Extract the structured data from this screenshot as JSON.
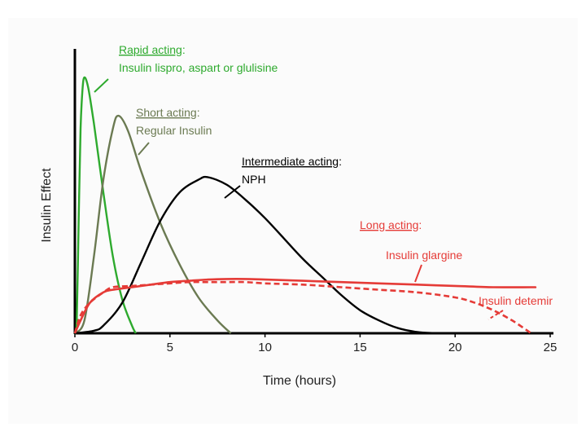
{
  "chart_data": {
    "type": "line",
    "xlabel": "Time (hours)",
    "ylabel": "Insulin Effect",
    "xlim": [
      0,
      25
    ],
    "ylim": [
      0,
      1
    ],
    "xticks": [
      0,
      5,
      10,
      15,
      20,
      25
    ],
    "grid": false,
    "series": [
      {
        "key": "rapid",
        "color": "#2eaa2e",
        "style": "solid",
        "points": [
          [
            0,
            0
          ],
          [
            0.1,
            0.05
          ],
          [
            0.2,
            0.45
          ],
          [
            0.3,
            0.8
          ],
          [
            0.4,
            0.95
          ],
          [
            0.5,
            1.0
          ],
          [
            0.7,
            0.96
          ],
          [
            1.0,
            0.82
          ],
          [
            1.5,
            0.55
          ],
          [
            2.0,
            0.3
          ],
          [
            2.5,
            0.13
          ],
          [
            3.0,
            0.03
          ],
          [
            3.2,
            0
          ]
        ]
      },
      {
        "key": "short",
        "color": "#6b7a52",
        "style": "solid",
        "points": [
          [
            0,
            0
          ],
          [
            0.5,
            0.05
          ],
          [
            1.0,
            0.3
          ],
          [
            1.5,
            0.6
          ],
          [
            2.0,
            0.8
          ],
          [
            2.3,
            0.85
          ],
          [
            2.8,
            0.79
          ],
          [
            3.5,
            0.63
          ],
          [
            4.5,
            0.43
          ],
          [
            5.5,
            0.27
          ],
          [
            6.5,
            0.14
          ],
          [
            7.5,
            0.05
          ],
          [
            8.2,
            0
          ]
        ]
      },
      {
        "key": "intermediate",
        "color": "#000000",
        "style": "solid",
        "points": [
          [
            0,
            0
          ],
          [
            1,
            0.01
          ],
          [
            1.5,
            0.03
          ],
          [
            2.5,
            0.12
          ],
          [
            3.5,
            0.28
          ],
          [
            4.5,
            0.44
          ],
          [
            5.5,
            0.55
          ],
          [
            6.5,
            0.6
          ],
          [
            7,
            0.61
          ],
          [
            8,
            0.58
          ],
          [
            9,
            0.52
          ],
          [
            10,
            0.45
          ],
          [
            11,
            0.37
          ],
          [
            12,
            0.29
          ],
          [
            13,
            0.22
          ],
          [
            14,
            0.15
          ],
          [
            15,
            0.09
          ],
          [
            16,
            0.05
          ],
          [
            17,
            0.02
          ],
          [
            18,
            0.005
          ],
          [
            19,
            0
          ]
        ]
      },
      {
        "key": "glargine",
        "color": "#e53b37",
        "style": "solid",
        "points": [
          [
            0,
            0
          ],
          [
            0.3,
            0.05
          ],
          [
            0.8,
            0.12
          ],
          [
            1.5,
            0.16
          ],
          [
            2,
            0.17
          ],
          [
            3,
            0.18
          ],
          [
            4,
            0.19
          ],
          [
            5,
            0.2
          ],
          [
            6,
            0.205
          ],
          [
            7,
            0.21
          ],
          [
            8,
            0.212
          ],
          [
            9,
            0.212
          ],
          [
            10,
            0.21
          ],
          [
            12,
            0.205
          ],
          [
            14,
            0.2
          ],
          [
            16,
            0.195
          ],
          [
            18,
            0.19
          ],
          [
            20,
            0.185
          ],
          [
            22,
            0.18
          ],
          [
            24,
            0.18
          ],
          [
            24.2,
            0.18
          ]
        ]
      },
      {
        "key": "detemir",
        "color": "#e53b37",
        "style": "dashed",
        "points": [
          [
            0,
            0
          ],
          [
            0.3,
            0.07
          ],
          [
            0.8,
            0.12
          ],
          [
            1.5,
            0.16
          ],
          [
            2,
            0.18
          ],
          [
            3,
            0.185
          ],
          [
            4,
            0.19
          ],
          [
            5,
            0.195
          ],
          [
            6,
            0.2
          ],
          [
            7,
            0.2
          ],
          [
            8,
            0.2
          ],
          [
            9,
            0.2
          ],
          [
            10,
            0.195
          ],
          [
            12,
            0.19
          ],
          [
            14,
            0.18
          ],
          [
            16,
            0.17
          ],
          [
            18,
            0.16
          ],
          [
            20,
            0.14
          ],
          [
            21,
            0.12
          ],
          [
            22,
            0.09
          ],
          [
            23,
            0.05
          ],
          [
            24,
            0
          ]
        ]
      }
    ]
  },
  "annotations": {
    "rapid": {
      "title": "Rapid acting",
      "colon": ":",
      "text": "Insulin lispro, aspart or glulisine",
      "color": "#2eaa2e"
    },
    "short": {
      "title": "Short acting",
      "colon": ":",
      "text": "Regular Insulin",
      "color": "#6b7a52"
    },
    "intermediate": {
      "title": "Intermediate acting",
      "colon": ":",
      "text": "NPH",
      "color": "#000000"
    },
    "long": {
      "title": "Long acting",
      "colon": ":",
      "color": "#e53b37"
    },
    "glargine": {
      "text": "Insulin glargine",
      "color": "#e53b37"
    },
    "detemir": {
      "text": "Insulin detemir",
      "color": "#e53b37"
    }
  }
}
